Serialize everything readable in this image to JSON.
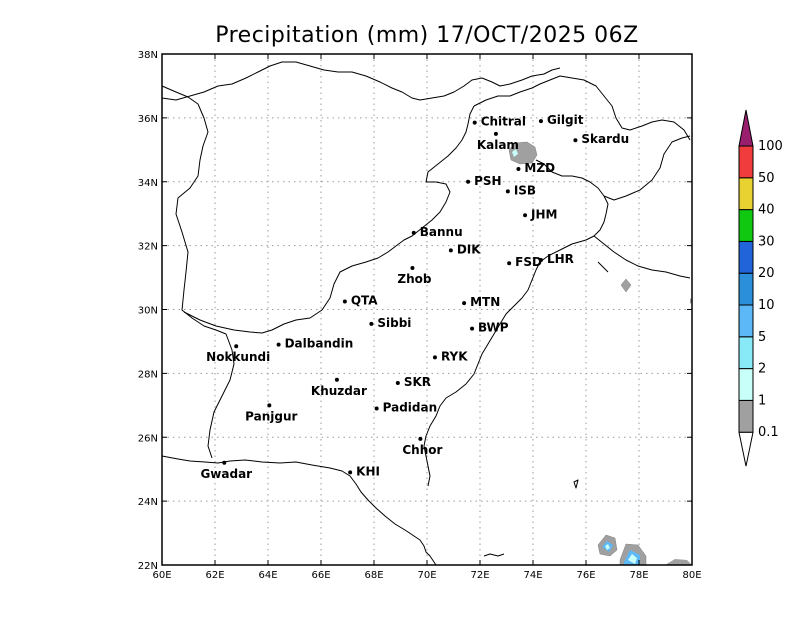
{
  "title": "Precipitation (mm) 17/OCT/2025 06Z",
  "map": {
    "lon_range": [
      60,
      80
    ],
    "lat_range": [
      22,
      38
    ],
    "lon_ticks": [
      {
        "value": 60,
        "label": "60E"
      },
      {
        "value": 62,
        "label": "62E"
      },
      {
        "value": 64,
        "label": "64E"
      },
      {
        "value": 66,
        "label": "66E"
      },
      {
        "value": 68,
        "label": "68E"
      },
      {
        "value": 70,
        "label": "70E"
      },
      {
        "value": 72,
        "label": "72E"
      },
      {
        "value": 74,
        "label": "74E"
      },
      {
        "value": 76,
        "label": "76E"
      },
      {
        "value": 78,
        "label": "78E"
      },
      {
        "value": 80,
        "label": "80E"
      }
    ],
    "lat_ticks": [
      {
        "value": 22,
        "label": "22N"
      },
      {
        "value": 24,
        "label": "24N"
      },
      {
        "value": 26,
        "label": "26N"
      },
      {
        "value": 28,
        "label": "28N"
      },
      {
        "value": 30,
        "label": "30N"
      },
      {
        "value": 32,
        "label": "32N"
      },
      {
        "value": 34,
        "label": "34N"
      },
      {
        "value": 36,
        "label": "36N"
      },
      {
        "value": 38,
        "label": "38N"
      }
    ],
    "grid": true,
    "cities": [
      {
        "name": "Chitral",
        "lon": 71.8,
        "lat": 35.85
      },
      {
        "name": "Gilgit",
        "lon": 74.3,
        "lat": 35.9
      },
      {
        "name": "Kalam",
        "lon": 72.6,
        "lat": 35.5
      },
      {
        "name": "Skardu",
        "lon": 75.6,
        "lat": 35.3
      },
      {
        "name": "MZD",
        "lon": 73.45,
        "lat": 34.4
      },
      {
        "name": "PSH",
        "lon": 71.55,
        "lat": 34.0
      },
      {
        "name": "ISB",
        "lon": 73.05,
        "lat": 33.7
      },
      {
        "name": "JHM",
        "lon": 73.7,
        "lat": 32.95
      },
      {
        "name": "Bannu",
        "lon": 69.5,
        "lat": 32.4
      },
      {
        "name": "DIK",
        "lon": 70.9,
        "lat": 31.85
      },
      {
        "name": "FSD",
        "lon": 73.1,
        "lat": 31.45
      },
      {
        "name": "LHR",
        "lon": 74.3,
        "lat": 31.55
      },
      {
        "name": "Zhob",
        "lon": 69.45,
        "lat": 31.3
      },
      {
        "name": "QTA",
        "lon": 66.9,
        "lat": 30.25
      },
      {
        "name": "MTN",
        "lon": 71.4,
        "lat": 30.2
      },
      {
        "name": "Sibbi",
        "lon": 67.9,
        "lat": 29.55
      },
      {
        "name": "BWP",
        "lon": 71.7,
        "lat": 29.4
      },
      {
        "name": "Nokkundi",
        "lon": 62.8,
        "lat": 28.85
      },
      {
        "name": "Dalbandin",
        "lon": 64.4,
        "lat": 28.9
      },
      {
        "name": "RYK",
        "lon": 70.3,
        "lat": 28.5
      },
      {
        "name": "Khuzdar",
        "lon": 66.6,
        "lat": 27.8
      },
      {
        "name": "SKR",
        "lon": 68.9,
        "lat": 27.7
      },
      {
        "name": "Panjgur",
        "lon": 64.05,
        "lat": 27.0
      },
      {
        "name": "Padidan",
        "lon": 68.1,
        "lat": 26.9
      },
      {
        "name": "Chhor",
        "lon": 69.75,
        "lat": 25.95
      },
      {
        "name": "Gwadar",
        "lon": 62.35,
        "lat": 25.2
      },
      {
        "name": "KHI",
        "lon": 67.1,
        "lat": 24.9
      }
    ]
  },
  "colorbar": {
    "levels": [
      {
        "label": "0.1",
        "color": "#a0a0a0"
      },
      {
        "label": "1",
        "color": "#c8fff9"
      },
      {
        "label": "2",
        "color": "#88e9f7"
      },
      {
        "label": "5",
        "color": "#5cb8f6"
      },
      {
        "label": "10",
        "color": "#2c8fd9"
      },
      {
        "label": "20",
        "color": "#2163d9"
      },
      {
        "label": "30",
        "color": "#10c810"
      },
      {
        "label": "40",
        "color": "#e8d232"
      },
      {
        "label": "50",
        "color": "#f03c3c"
      },
      {
        "label": "100",
        "color": "#9a1e6e"
      }
    ]
  }
}
